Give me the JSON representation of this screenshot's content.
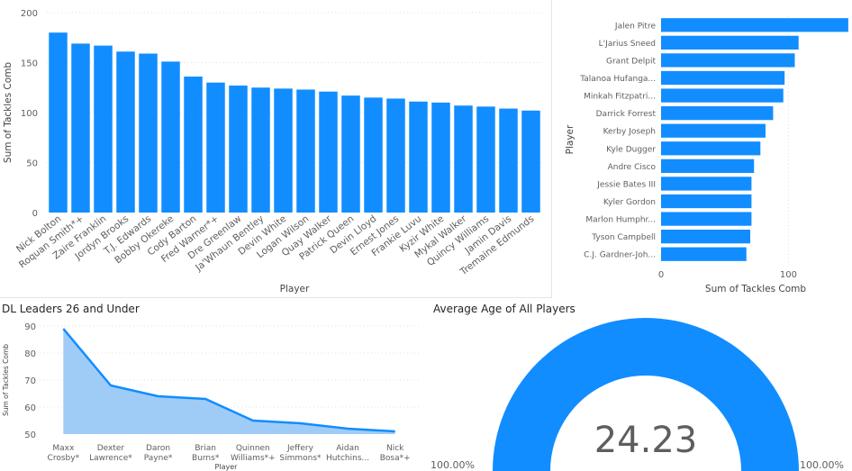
{
  "colors": {
    "bar": "#118DFF",
    "area_fill": "#9FCCF7",
    "area_line": "#118DFF",
    "gauge": "#118DFF",
    "axis_text": "#605E5C",
    "grid": "#E1E1E1"
  },
  "chart_data": [
    {
      "type": "bar",
      "orientation": "vertical",
      "title": "",
      "xlabel": "Player",
      "ylabel": "Sum of Tackles Comb",
      "ylim": [
        0,
        200
      ],
      "yticks": [
        0,
        50,
        100,
        150,
        200
      ],
      "grid": true,
      "categories": [
        "Nick Bolton",
        "Roquan Smith*+",
        "Zaire Franklin",
        "Jordyn Brooks",
        "T.J. Edwards",
        "Bobby Okereke",
        "Cody Barton",
        "Fred Warner*+",
        "Dre Greenlaw",
        "Ja'Whaun Bentley",
        "Devin White",
        "Logan Wilson",
        "Quay Walker",
        "Patrick Queen",
        "Devin Lloyd",
        "Ernest Jones",
        "Frankie Luvu",
        "Kyzir White",
        "Mykal Walker",
        "Quincy Williams",
        "Jamin Davis",
        "Tremaine Edmunds"
      ],
      "values": [
        180,
        169,
        167,
        161,
        159,
        151,
        136,
        130,
        127,
        125,
        124,
        123,
        121,
        117,
        115,
        114,
        111,
        110,
        107,
        106,
        104,
        102
      ]
    },
    {
      "type": "bar",
      "orientation": "horizontal",
      "title": "",
      "xlabel": "Sum of Tackles Comb",
      "ylabel": "Player",
      "xlim": [
        0,
        150
      ],
      "xticks": [
        0,
        100
      ],
      "grid": true,
      "categories": [
        "Jalen Pitre",
        "L'Jarius Sneed",
        "Grant Delpit",
        "Talanoa Hufanga...",
        "Minkah Fitzpatri...",
        "Darrick Forrest",
        "Kerby Joseph",
        "Kyle Dugger",
        "Andre Cisco",
        "Jessie Bates III",
        "Kyler Gordon",
        "Marlon Humphr...",
        "Tyson Campbell",
        "C.J. Gardner-Joh..."
      ],
      "values": [
        147,
        108,
        105,
        97,
        96,
        88,
        82,
        78,
        73,
        71,
        71,
        71,
        70,
        67
      ]
    },
    {
      "type": "area",
      "title": "DL Leaders 26 and Under",
      "xlabel": "Player",
      "ylabel": "Sum of Tackles Comb",
      "ylim": [
        50,
        90
      ],
      "yticks": [
        50,
        60,
        70,
        80,
        90
      ],
      "grid": true,
      "categories": [
        [
          "Maxx",
          "Crosby*"
        ],
        [
          "Dexter",
          "Lawrence*"
        ],
        [
          "Daron",
          "Payne*"
        ],
        [
          "Brian",
          "Burns*"
        ],
        [
          "Quinnen",
          "Williams*+"
        ],
        [
          "Jeffery",
          "Simmons*"
        ],
        [
          "Aidan",
          "Hutchins..."
        ],
        [
          "Nick",
          "Bosa*+"
        ]
      ],
      "values": [
        89,
        68,
        64,
        63,
        55,
        54,
        52,
        51
      ]
    },
    {
      "type": "gauge",
      "title": "Average Age of All Players",
      "value": 24.23,
      "value_label": "24.23",
      "fill_fraction": 1.0,
      "min_label": "100.00%",
      "max_label": "100.00%"
    }
  ]
}
